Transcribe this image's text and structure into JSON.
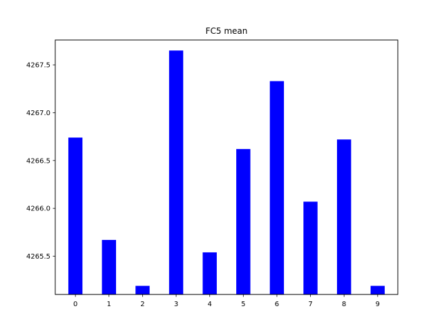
{
  "chart_data": {
    "type": "bar",
    "title": "FC5 mean",
    "xlabel": "",
    "ylabel": "",
    "categories": [
      "0",
      "1",
      "2",
      "3",
      "4",
      "5",
      "6",
      "7",
      "8",
      "9"
    ],
    "values": [
      4266.74,
      4265.67,
      4265.19,
      4267.65,
      4265.54,
      4266.62,
      4267.33,
      4266.07,
      4266.72,
      4265.19
    ],
    "ylim": [
      4265.1,
      4267.76
    ],
    "yticks": [
      4265.5,
      4266.0,
      4266.5,
      4267.0,
      4267.5
    ],
    "ytick_labels": [
      "4265.5",
      "4266.0",
      "4266.5",
      "4267.0",
      "4267.5"
    ],
    "bar_color": "#0000ff",
    "grid": false,
    "legend": "none"
  }
}
